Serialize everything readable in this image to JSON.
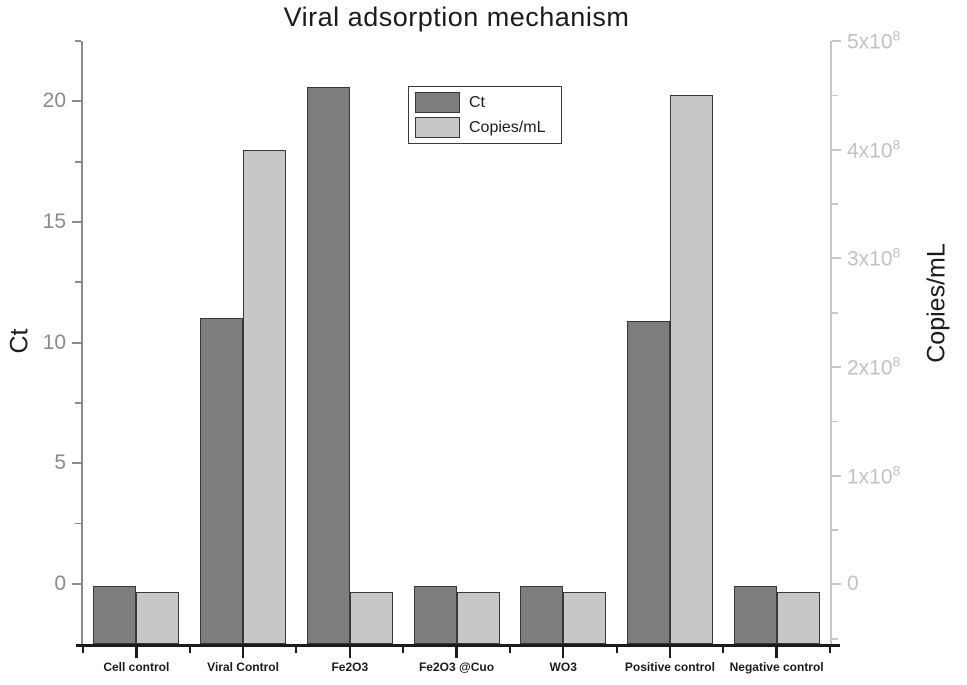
{
  "chart_data": {
    "type": "bar",
    "title": "Viral adsorption mechanism",
    "categories": [
      "Cell control",
      "Viral Control",
      "Fe2O3",
      "Fe2O3 @Cuo",
      "WO3",
      "Positive control",
      "Negative control"
    ],
    "series": [
      {
        "name": "Ct",
        "axis": "left",
        "values": [
          -0.1,
          11.0,
          20.6,
          -0.1,
          -0.1,
          10.9,
          -0.1
        ]
      },
      {
        "name": "Copies/mL",
        "axis": "right",
        "values": [
          -7000000,
          400000000,
          -7000000,
          -7000000,
          -7000000,
          450000000,
          -7000000
        ]
      }
    ],
    "left_axis": {
      "label": "Ct",
      "tick_labels": [
        "0",
        "5",
        "10",
        "15",
        "20"
      ],
      "tick_values": [
        0,
        5,
        10,
        15,
        20
      ],
      "minor_values": [
        2.5,
        7.5,
        12.5,
        17.5,
        22.5
      ],
      "range": [
        -2.5,
        22.5
      ]
    },
    "right_axis": {
      "label": "Copies/mL",
      "tick_labels": [
        "0",
        "1x10^8",
        "2x10^8",
        "3x10^8",
        "4x10^8",
        "5x10^8"
      ],
      "tick_values": [
        0,
        100000000,
        200000000,
        300000000,
        400000000,
        500000000
      ],
      "minor_values": [
        -50000000,
        50000000,
        150000000,
        250000000,
        350000000,
        450000000
      ],
      "range": [
        -55000000,
        500000000
      ]
    },
    "legend": {
      "entries": [
        "Ct",
        "Copies/mL"
      ]
    },
    "grid": "off",
    "legend_position": "upper-center-left"
  },
  "colors": {
    "ct_fill": "#7d7d7d",
    "copies_fill": "#c7c7c7",
    "bar_border": "#383838",
    "left_axis": "#8b8b8b",
    "right_axis": "#c6c6c6",
    "bottom_axis": "#1b1b1b",
    "text": "#1b1b1b"
  }
}
